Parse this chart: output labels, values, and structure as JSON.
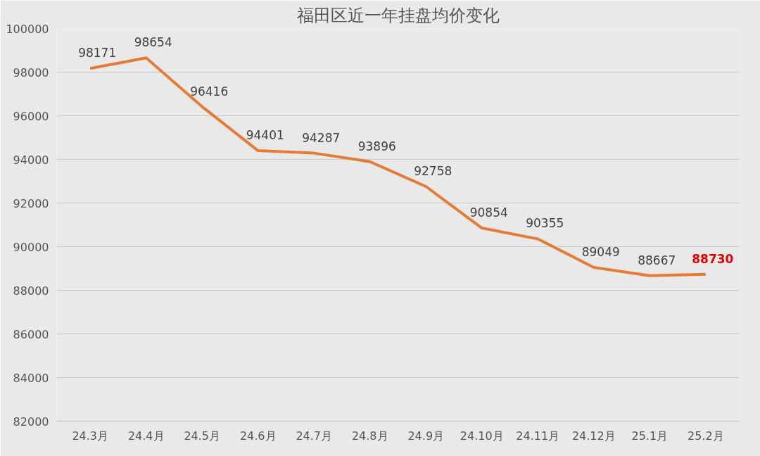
{
  "chart_data": {
    "type": "line",
    "title": "福田区近一年挂盘均价变化",
    "categories": [
      "24.3月",
      "24.4月",
      "24.5月",
      "24.6月",
      "24.7月",
      "24.8月",
      "24.9月",
      "24.10月",
      "24.11月",
      "24.12月",
      "25.1月",
      "25.2月"
    ],
    "series": [
      {
        "color": "#e47c36",
        "values": [
          98171,
          98654,
          96416,
          94401,
          94287,
          93896,
          92758,
          90854,
          90355,
          89049,
          88667,
          88730
        ]
      }
    ],
    "ylim": [
      82000,
      100000
    ],
    "yticks": [
      82000,
      84000,
      86000,
      88000,
      90000,
      92000,
      94000,
      96000,
      98000,
      100000
    ],
    "grid": "y",
    "data_labels": true,
    "marker": "none",
    "line_style": "solid"
  }
}
